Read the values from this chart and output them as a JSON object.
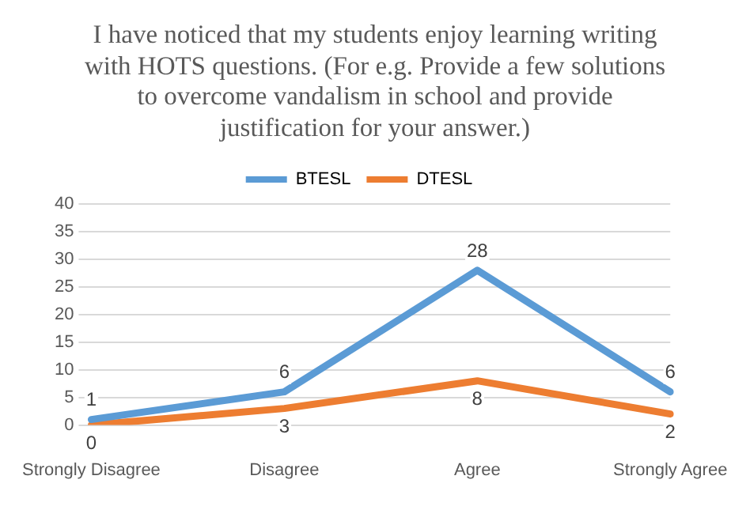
{
  "chart_data": {
    "type": "line",
    "title": "I have noticed that my students enjoy learning writing with HOTS questions. (For e.g. Provide a few solutions to overcome vandalism in school and provide justification for your answer.)",
    "categories": [
      "Strongly Disagree",
      "Disagree",
      "Agree",
      "Strongly Agree"
    ],
    "series": [
      {
        "name": "BTESL",
        "color": "#5b9bd5",
        "values": [
          1,
          6,
          28,
          6
        ]
      },
      {
        "name": "DTESL",
        "color": "#ed7d31",
        "values": [
          0,
          3,
          8,
          2
        ]
      }
    ],
    "ylim": [
      0,
      40
    ],
    "yticks": [
      0,
      5,
      10,
      15,
      20,
      25,
      30,
      35,
      40
    ],
    "grid": "y",
    "legend": "top",
    "data_labels": true,
    "marker": "none",
    "line_style": "solid"
  }
}
